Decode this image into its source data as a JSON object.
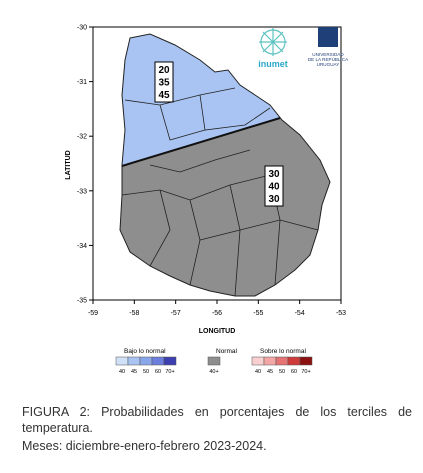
{
  "map": {
    "x_axis_title": "LONGITUD",
    "y_axis_title": "LATITUD",
    "x_ticks": [
      -59,
      -58,
      -57,
      -56,
      -55,
      -54,
      -53
    ],
    "y_ticks": [
      -30,
      -31,
      -32,
      -33,
      -34,
      -35
    ],
    "regions": [
      {
        "category": "Bajo lo normal",
        "color": "#a9c4f2",
        "probabilities": [
          20,
          35,
          45
        ]
      },
      {
        "category": "Normal",
        "color": "#8e8e8e",
        "probabilities": [
          30,
          40,
          30
        ]
      }
    ]
  },
  "logos": {
    "inumet": "inumet",
    "university": [
      "UNIVERSIDAD",
      "DE LA REPÚBLICA",
      "URUGUAY"
    ]
  },
  "legend": [
    {
      "title": "Bajo lo normal",
      "colors": [
        "#cfe0f7",
        "#a9c4f2",
        "#8aa6ea",
        "#6c7fdc",
        "#3d3fb0"
      ],
      "labels": [
        "40",
        "45",
        "50",
        "60",
        "70+"
      ]
    },
    {
      "title": "Normal",
      "colors": [
        "#8e8e8e"
      ],
      "labels": [
        "40+"
      ]
    },
    {
      "title": "Sobre lo normal",
      "colors": [
        "#f8d0d0",
        "#f2a6a6",
        "#e57373",
        "#cf3b3b",
        "#8b1010"
      ],
      "labels": [
        "40",
        "45",
        "50",
        "60",
        "70+"
      ]
    }
  ],
  "caption": {
    "text": "FIGURA  2: Probabilidades en porcentajes de los terciles de temperatura.",
    "period": "Meses: diciembre-enero-febrero 2023-2024."
  }
}
